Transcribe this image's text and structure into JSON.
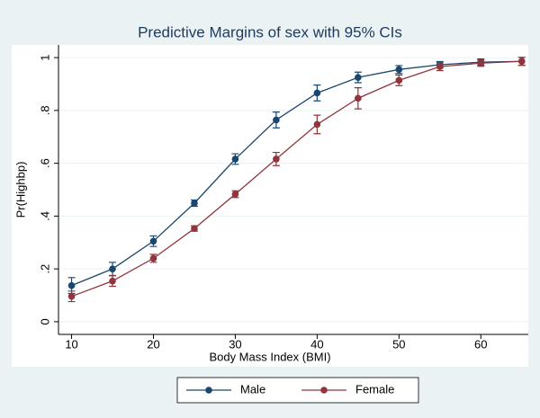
{
  "chart_data": {
    "type": "line",
    "title": "Predictive Margins of sex with 95% CIs",
    "x_label": "Body Mass Index (BMI)",
    "y_label": "Pr(Highbp)",
    "x": [
      10,
      15,
      20,
      25,
      30,
      35,
      40,
      45,
      50,
      55,
      60,
      65
    ],
    "series": [
      {
        "name": "Male",
        "color": "#1a476f",
        "values": [
          0.137,
          0.2,
          0.305,
          0.449,
          0.616,
          0.764,
          0.866,
          0.925,
          0.955,
          0.973,
          0.983,
          0.986
        ],
        "errors": [
          0.03,
          0.025,
          0.02,
          0.012,
          0.02,
          0.03,
          0.03,
          0.02,
          0.015,
          0.012,
          0.012,
          0.015
        ]
      },
      {
        "name": "Female",
        "color": "#90353b",
        "values": [
          0.096,
          0.154,
          0.24,
          0.353,
          0.483,
          0.616,
          0.747,
          0.846,
          0.914,
          0.966,
          0.979,
          0.986
        ],
        "errors": [
          0.02,
          0.02,
          0.015,
          0.01,
          0.013,
          0.025,
          0.035,
          0.04,
          0.02,
          0.015,
          0.012,
          0.015
        ]
      }
    ],
    "xlim": [
      8.4,
      65.8
    ],
    "xticks": [
      10,
      20,
      30,
      40,
      50,
      60
    ],
    "ylim": [
      -0.048,
      1.048
    ],
    "yticks": [
      0,
      {
        "value": 0.2,
        "label": ".2"
      },
      {
        "value": 0.4,
        "label": ".4"
      },
      {
        "value": 0.6,
        "label": ".6"
      },
      {
        "value": 0.8,
        "label": ".8"
      },
      1
    ],
    "grid": true,
    "legend": "bottom"
  }
}
